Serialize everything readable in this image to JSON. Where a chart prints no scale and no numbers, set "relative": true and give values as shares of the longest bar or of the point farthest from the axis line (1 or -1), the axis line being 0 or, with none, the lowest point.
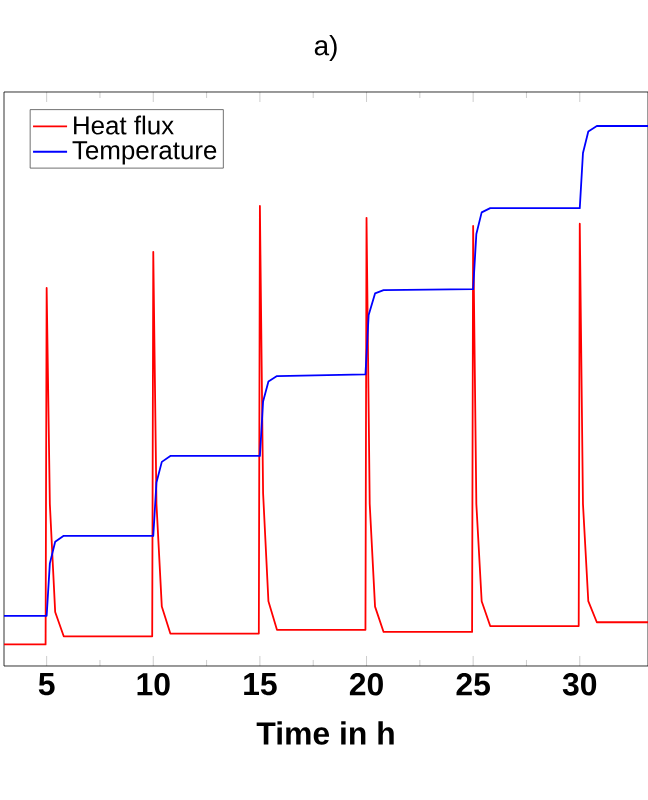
{
  "chart_data": {
    "type": "line",
    "title": "a)",
    "xlabel": "Time in h",
    "relative": true,
    "xlim": [
      3,
      33.2
    ],
    "xticks": [
      5,
      10,
      15,
      20,
      25,
      30
    ],
    "tick_labels": "x",
    "legend": "top left",
    "grid": false,
    "marker": "none",
    "line_style": "solid",
    "series": [
      {
        "name": "Heat flux",
        "color": "#ff0000",
        "x": [
          3,
          4.95,
          5,
          5.15,
          5.4,
          5.8,
          9.95,
          10,
          10.15,
          10.4,
          10.8,
          14.95,
          15,
          15.15,
          15.4,
          15.8,
          19.95,
          20,
          20.15,
          20.4,
          20.8,
          24.95,
          25,
          25.15,
          25.4,
          25.8,
          29.95,
          30,
          30.15,
          30.4,
          30.8,
          33.2
        ],
        "values": [
          0.04,
          0.04,
          0.7,
          0.3,
          0.1,
          0.055,
          0.055,
          0.767,
          0.3,
          0.11,
          0.06,
          0.06,
          0.852,
          0.32,
          0.12,
          0.067,
          0.067,
          0.83,
          0.3,
          0.11,
          0.063,
          0.063,
          0.815,
          0.3,
          0.12,
          0.074,
          0.074,
          0.819,
          0.3,
          0.12,
          0.081,
          0.081
        ]
      },
      {
        "name": "Temperature",
        "color": "#0000ff",
        "x": [
          3,
          5,
          5.15,
          5.4,
          5.8,
          10,
          10.15,
          10.4,
          10.8,
          15,
          15.15,
          15.4,
          15.8,
          19.95,
          20.1,
          20.4,
          20.8,
          25,
          25.15,
          25.4,
          25.8,
          30,
          30.15,
          30.4,
          30.8,
          33.2
        ],
        "values": [
          0.093,
          0.093,
          0.19,
          0.23,
          0.241,
          0.241,
          0.34,
          0.378,
          0.389,
          0.389,
          0.49,
          0.527,
          0.537,
          0.54,
          0.65,
          0.69,
          0.696,
          0.698,
          0.8,
          0.84,
          0.848,
          0.848,
          0.95,
          0.99,
          1.0,
          1.0
        ]
      }
    ]
  }
}
